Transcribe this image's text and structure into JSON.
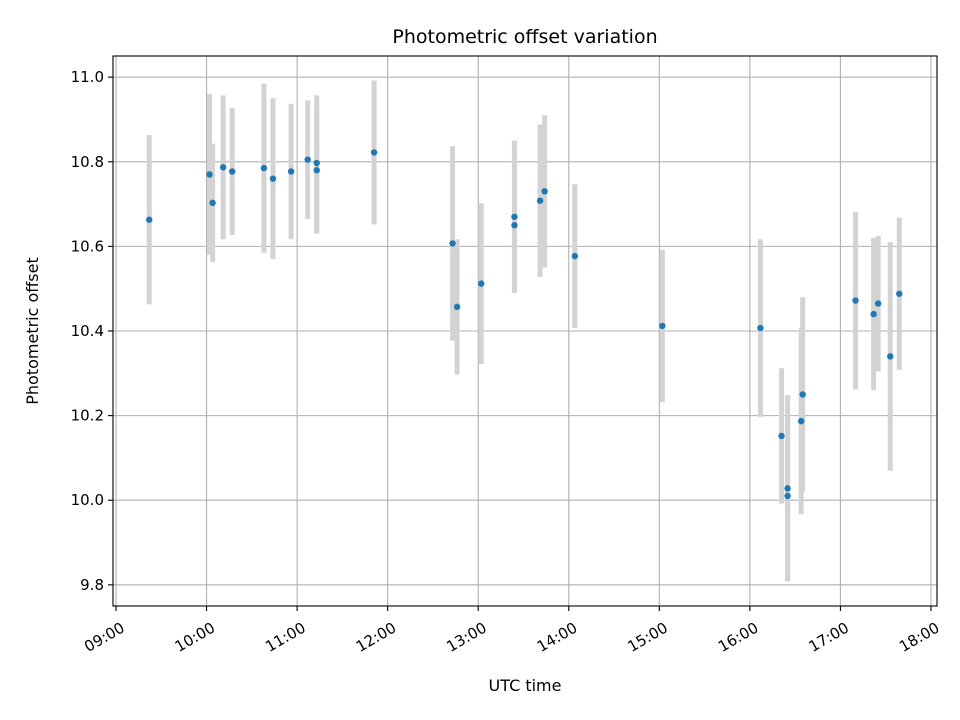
{
  "chart_data": {
    "type": "scatter",
    "title": "Photometric offset variation",
    "xlabel": "UTC time",
    "ylabel": "Photometric offset",
    "xlim": [
      "08:58",
      "18:04"
    ],
    "ylim": [
      9.75,
      11.05
    ],
    "x_ticks": [
      "09:00",
      "10:00",
      "11:00",
      "12:00",
      "13:00",
      "14:00",
      "15:00",
      "16:00",
      "17:00",
      "18:00"
    ],
    "y_ticks": [
      9.8,
      10.0,
      10.2,
      10.4,
      10.6,
      10.8,
      11.0
    ],
    "y_tick_labels": [
      "9.8",
      "10.0",
      "10.2",
      "10.4",
      "10.6",
      "10.8",
      "11.0"
    ],
    "grid": true,
    "marker_color": "#1f77b4",
    "errorbar_color": "#d3d3d3",
    "points": [
      {
        "time": "09:22",
        "y": 10.663,
        "err": 0.2
      },
      {
        "time": "10:02",
        "y": 10.77,
        "err": 0.19
      },
      {
        "time": "10:04",
        "y": 10.703,
        "err": 0.14
      },
      {
        "time": "10:11",
        "y": 10.787,
        "err": 0.17
      },
      {
        "time": "10:17",
        "y": 10.777,
        "err": 0.15
      },
      {
        "time": "10:38",
        "y": 10.785,
        "err": 0.2
      },
      {
        "time": "10:44",
        "y": 10.76,
        "err": 0.19
      },
      {
        "time": "10:56",
        "y": 10.777,
        "err": 0.16
      },
      {
        "time": "11:07",
        "y": 10.805,
        "err": 0.14
      },
      {
        "time": "11:13",
        "y": 10.78,
        "err": 0.15
      },
      {
        "time": "11:13",
        "y": 10.797,
        "err": 0.16
      },
      {
        "time": "11:51",
        "y": 10.822,
        "err": 0.17
      },
      {
        "time": "12:43",
        "y": 10.607,
        "err": 0.23
      },
      {
        "time": "12:46",
        "y": 10.457,
        "err": 0.16
      },
      {
        "time": "13:02",
        "y": 10.512,
        "err": 0.19
      },
      {
        "time": "13:24",
        "y": 10.65,
        "err": 0.16
      },
      {
        "time": "13:24",
        "y": 10.67,
        "err": 0.18
      },
      {
        "time": "13:41",
        "y": 10.708,
        "err": 0.18
      },
      {
        "time": "13:44",
        "y": 10.73,
        "err": 0.18
      },
      {
        "time": "14:04",
        "y": 10.577,
        "err": 0.17
      },
      {
        "time": "15:02",
        "y": 10.412,
        "err": 0.18
      },
      {
        "time": "16:07",
        "y": 10.407,
        "err": 0.21
      },
      {
        "time": "16:21",
        "y": 10.152,
        "err": 0.16
      },
      {
        "time": "16:25",
        "y": 10.028,
        "err": 0.22
      },
      {
        "time": "16:25",
        "y": 10.01,
        "err": 0.2
      },
      {
        "time": "16:34",
        "y": 10.187,
        "err": 0.22
      },
      {
        "time": "16:35",
        "y": 10.25,
        "err": 0.23
      },
      {
        "time": "17:10",
        "y": 10.472,
        "err": 0.21
      },
      {
        "time": "17:22",
        "y": 10.44,
        "err": 0.18
      },
      {
        "time": "17:25",
        "y": 10.465,
        "err": 0.16
      },
      {
        "time": "17:33",
        "y": 10.34,
        "err": 0.27
      },
      {
        "time": "17:39",
        "y": 10.488,
        "err": 0.18
      }
    ]
  }
}
